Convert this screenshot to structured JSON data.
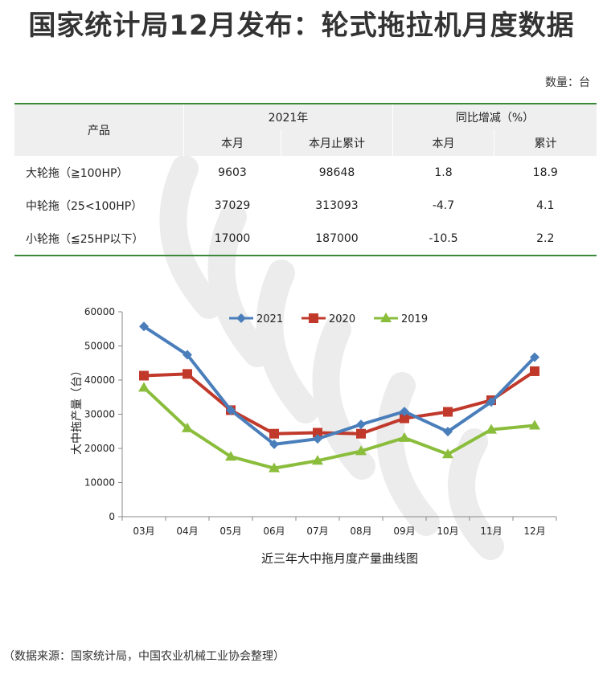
{
  "header": {
    "title": "国家统计局12月发布：轮式拖拉机月度数据",
    "unit": "数量：台"
  },
  "table": {
    "col_product": "产品",
    "group_2021": "2021年",
    "group_yoy": "同比增减（%）",
    "sub_month": "本月",
    "sub_cumulative_month": "本月止累计",
    "sub_month2": "本月",
    "sub_cumulative": "累计",
    "rows": [
      {
        "product": "大轮拖（≧100HP）",
        "month": "9603",
        "cumulative": "98648",
        "yoy_month": "1.8",
        "yoy_cumulative": "18.9"
      },
      {
        "product": "中轮拖（25<100HP）",
        "month": "37029",
        "cumulative": "313093",
        "yoy_month": "-4.7",
        "yoy_cumulative": "4.1"
      },
      {
        "product": "小轮拖（≦25HP以下）",
        "month": "17000",
        "cumulative": "187000",
        "yoy_month": "-10.5",
        "yoy_cumulative": "2.2"
      }
    ]
  },
  "chart_data": {
    "type": "line",
    "title": "",
    "xlabel": "近三年大中拖月度产量曲线图",
    "ylabel": "大中拖产量（台）",
    "categories": [
      "03月",
      "04月",
      "05月",
      "06月",
      "07月",
      "08月",
      "09月",
      "10月",
      "11月",
      "12月"
    ],
    "ylim": [
      0,
      60000
    ],
    "yticks": [
      0,
      10000,
      20000,
      30000,
      40000,
      50000,
      60000
    ],
    "grid": false,
    "legend": "top-center",
    "series": [
      {
        "name": "2021",
        "color": "#4a7ebb",
        "marker": "diamond",
        "values": [
          55700,
          47400,
          31200,
          21200,
          22800,
          27000,
          30800,
          24900,
          33600,
          46700
        ]
      },
      {
        "name": "2020",
        "color": "#c0392b",
        "marker": "square",
        "values": [
          41300,
          41800,
          31200,
          24300,
          24600,
          24300,
          28800,
          30700,
          34100,
          42600
        ]
      },
      {
        "name": "2019",
        "color": "#8bbd3c",
        "marker": "triangle",
        "values": [
          37800,
          25900,
          17600,
          14200,
          16400,
          19200,
          23100,
          18300,
          25500,
          26700
        ]
      }
    ]
  },
  "footer": {
    "source": "（数据来源：国家统计局，中国农业机械工业协会整理）"
  }
}
